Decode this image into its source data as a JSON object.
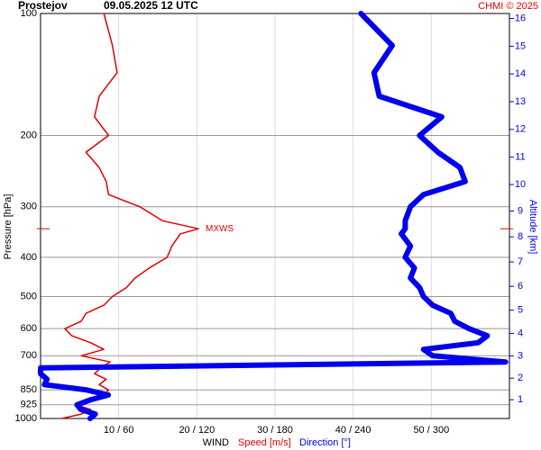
{
  "chart_data": {
    "type": "profile",
    "station": "Prostejov",
    "time": "09.05.2025 12 UTC",
    "credit": "CHMI © 2025",
    "ylabel": "Pressure [hPa]",
    "y2label": "Altitude [km]",
    "xlabel": "WIND",
    "pressure": [
      1000,
      975,
      950,
      925,
      900,
      875,
      850,
      825,
      800,
      775,
      750,
      725,
      700,
      675,
      650,
      625,
      600,
      575,
      550,
      525,
      500,
      475,
      450,
      425,
      400,
      375,
      350,
      340,
      325,
      300,
      280,
      260,
      240,
      220,
      200,
      180,
      160,
      140,
      120,
      100
    ],
    "series": [
      {
        "name": "Speed [m/s]",
        "color": "#e00000",
        "axis": "x",
        "values": [
          2.7,
          5.2,
          6.4,
          4.6,
          6.4,
          8.1,
          8.7,
          7.5,
          8.4,
          6.9,
          7.7,
          8.9,
          5.2,
          8.1,
          6.4,
          4.0,
          3.1,
          5.2,
          5.8,
          8.1,
          9.2,
          11.0,
          12.1,
          13.9,
          16.2,
          16.8,
          17.9,
          20.2,
          15.6,
          12.7,
          8.7,
          8.4,
          7.5,
          5.8,
          8.7,
          6.9,
          7.5,
          9.8,
          9.2,
          8.1
        ]
      },
      {
        "name": "Direction [°]",
        "color": "#0000ee",
        "axis": "x2",
        "values": [
          38,
          42,
          31,
          28,
          38,
          52,
          35,
          3,
          5,
          0,
          0,
          357,
          301,
          294,
          336,
          343,
          329,
          318,
          315,
          301,
          294,
          291,
          284,
          287,
          280,
          284,
          277,
          280,
          280,
          284,
          294,
          326,
          322,
          305,
          291,
          308,
          260,
          256,
          270,
          246
        ]
      }
    ],
    "max_wind": {
      "label": "MXWS",
      "pressure": 340
    },
    "xlim": [
      0,
      60
    ],
    "x2lim": [
      0,
      360
    ],
    "xticks": [
      {
        "value": 10,
        "label": "10 / 60"
      },
      {
        "value": 20,
        "label": "20 / 120"
      },
      {
        "value": 30,
        "label": "30 / 180"
      },
      {
        "value": 40,
        "label": "40 / 240"
      },
      {
        "value": 50,
        "label": "50 / 300"
      }
    ],
    "ylim": [
      100,
      1000
    ],
    "ylog": true,
    "yticks": [
      100,
      200,
      300,
      400,
      500,
      600,
      700,
      850,
      925,
      1000
    ],
    "y2ticks": [
      1,
      2,
      3,
      4,
      5,
      6,
      7,
      8,
      9,
      10,
      11,
      12,
      13,
      14,
      15,
      16
    ],
    "grid": true
  }
}
